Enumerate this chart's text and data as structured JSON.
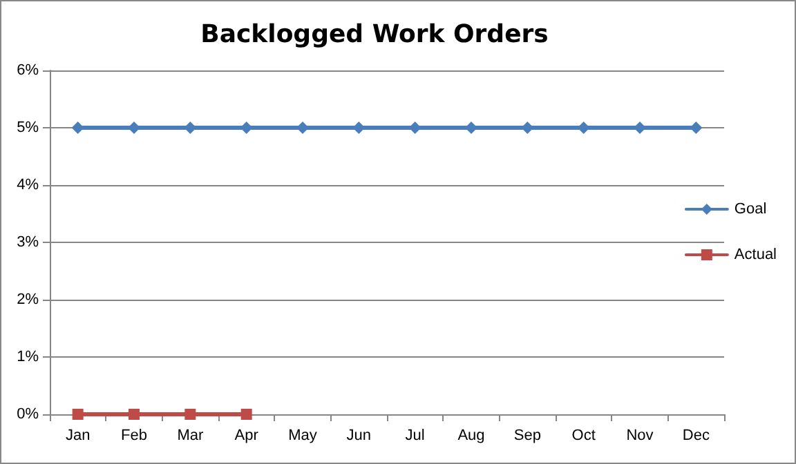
{
  "chart_data": {
    "type": "line",
    "title": "Backlogged Work Orders",
    "categories": [
      "Jan",
      "Feb",
      "Mar",
      "Apr",
      "May",
      "Jun",
      "Jul",
      "Aug",
      "Sep",
      "Oct",
      "Nov",
      "Dec"
    ],
    "series": [
      {
        "name": "Goal",
        "color": "#4a7ebb",
        "marker": "diamond",
        "values": [
          5,
          5,
          5,
          5,
          5,
          5,
          5,
          5,
          5,
          5,
          5,
          5
        ]
      },
      {
        "name": "Actual",
        "color": "#be4b48",
        "marker": "square",
        "values": [
          0,
          0,
          0,
          0,
          null,
          null,
          null,
          null,
          null,
          null,
          null,
          null
        ]
      }
    ],
    "ylim": [
      0,
      6
    ],
    "yticks": [
      {
        "value": 0,
        "label": "0%"
      },
      {
        "value": 1,
        "label": "1%"
      },
      {
        "value": 2,
        "label": "2%"
      },
      {
        "value": 3,
        "label": "3%"
      },
      {
        "value": 4,
        "label": "4%"
      },
      {
        "value": 5,
        "label": "5%"
      },
      {
        "value": 6,
        "label": "6%"
      }
    ],
    "grid": "y",
    "legend": "right",
    "line_style": "solid"
  }
}
